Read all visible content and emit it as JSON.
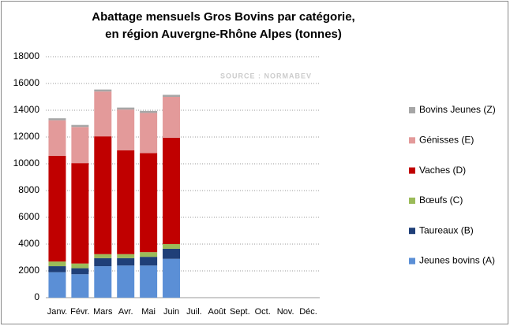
{
  "chart_data": {
    "type": "stacked_bar",
    "title": [
      "Abattage mensuels Gros Bovins par catégorie,",
      "en région Auvergne-Rhône Alpes (tonnes)"
    ],
    "annotation": "SOURCE : NORMABEV",
    "categories": [
      "Janv.",
      "Févr.",
      "Mars",
      "Avr.",
      "Mai",
      "Juin",
      "Juil.",
      "Août",
      "Sept.",
      "Oct.",
      "Nov.",
      "Déc."
    ],
    "series": [
      {
        "name": "Jeunes bovins (A)",
        "color": "#5b8fd6",
        "values": [
          1900,
          1750,
          2350,
          2400,
          2400,
          2900,
          null,
          null,
          null,
          null,
          null,
          null
        ]
      },
      {
        "name": "Taureaux (B)",
        "color": "#1f3f78",
        "values": [
          450,
          450,
          600,
          550,
          650,
          750,
          null,
          null,
          null,
          null,
          null,
          null
        ]
      },
      {
        "name": "Bœufs (C)",
        "color": "#9bbb59",
        "values": [
          350,
          350,
          300,
          300,
          350,
          350,
          null,
          null,
          null,
          null,
          null,
          null
        ]
      },
      {
        "name": "Vaches (D)",
        "color": "#c00000",
        "values": [
          7900,
          7500,
          8800,
          7750,
          7400,
          7950,
          null,
          null,
          null,
          null,
          null,
          null
        ]
      },
      {
        "name": "Génisses (E)",
        "color": "#e39a9a",
        "values": [
          2650,
          2700,
          3350,
          3050,
          3000,
          3050,
          null,
          null,
          null,
          null,
          null,
          null
        ]
      },
      {
        "name": "Bovins Jeunes (Z)",
        "color": "#a6a6a6",
        "values": [
          150,
          150,
          150,
          150,
          150,
          150,
          null,
          null,
          null,
          null,
          null,
          null
        ]
      }
    ],
    "ylim": [
      0,
      18000
    ],
    "yticks": [
      0,
      2000,
      4000,
      6000,
      8000,
      10000,
      12000,
      14000,
      16000,
      18000
    ],
    "grid": true,
    "legend": "right"
  }
}
